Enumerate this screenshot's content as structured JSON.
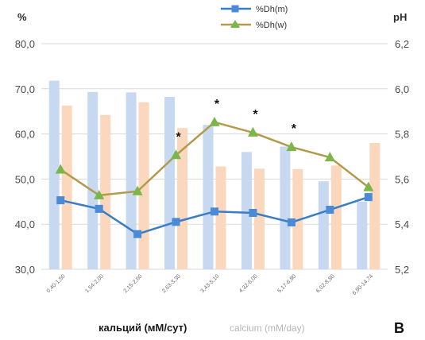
{
  "chart_data": {
    "type": "bar+line",
    "categories": [
      "0,40-1,50",
      "1,54-2,00",
      "2,15-2,60",
      "2,63-3,30",
      "3,43-5,10",
      "4,32-6,00",
      "5,17-6,90",
      "6,02-8,80",
      "6,90-14,74"
    ],
    "bars": [
      {
        "color": "#c6d9f1",
        "axis": "left",
        "values": [
          71.8,
          69.3,
          69.2,
          68.2,
          62.0,
          56.0,
          57.2,
          49.5,
          45.0
        ]
      },
      {
        "color": "#fad7bd",
        "axis": "left",
        "values": [
          66.3,
          64.2,
          67.0,
          61.3,
          52.8,
          52.3,
          52.2,
          53.0,
          58.0
        ]
      }
    ],
    "series": [
      {
        "name": "%Dh(m)",
        "color": "#3a7cc7",
        "marker": "square",
        "axis": "left",
        "values": [
          45.3,
          43.4,
          37.8,
          40.5,
          42.8,
          42.5,
          40.4,
          43.2,
          46.0
        ]
      },
      {
        "name": "%Dh(w)",
        "color": "#b49a4c",
        "marker_color": "#7ab648",
        "marker": "triangle",
        "axis": "left",
        "values": [
          52.1,
          46.4,
          47.3,
          55.3,
          62.6,
          60.3,
          57.1,
          54.8,
          48.2
        ]
      }
    ],
    "significance": [
      false,
      false,
      false,
      true,
      true,
      true,
      true,
      false,
      false
    ],
    "significance_mark": "*",
    "y_left": {
      "label": "%",
      "min": 30,
      "max": 80,
      "ticks": [
        "30,0",
        "40,0",
        "50,0",
        "60,0",
        "70,0",
        "80,0"
      ]
    },
    "y_right": {
      "label": "pH",
      "min": 5.2,
      "max": 6.2,
      "ticks": [
        "5,2",
        "5,4",
        "5,6",
        "5,8",
        "6,0",
        "6,2"
      ]
    },
    "xlabel_ru": "кальций (мМ/сут)",
    "xlabel_en": "calcium  (mM/day)",
    "panel_letter": "В",
    "legend_position": "top-center",
    "grid": "horizontal"
  }
}
